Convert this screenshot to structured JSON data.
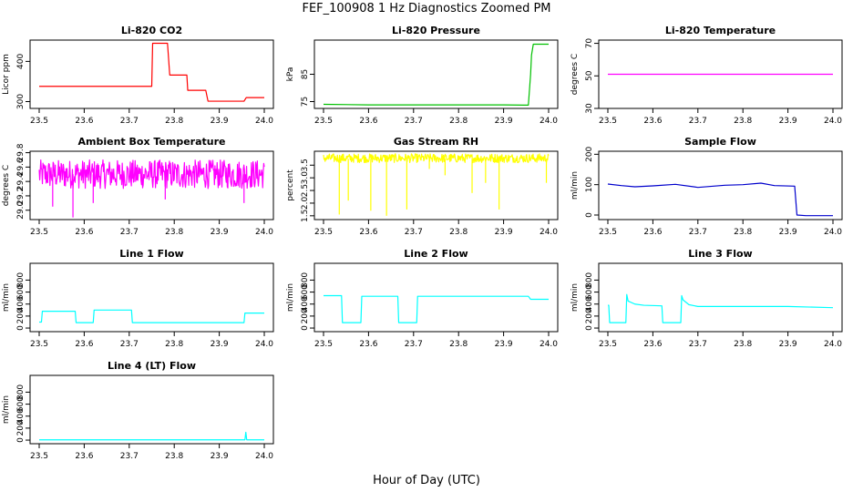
{
  "figure": {
    "title": "FEF_100908  1 Hz Diagnostics Zoomed PM",
    "xlabel": "Hour of Day (UTC)"
  },
  "chart_data": [
    {
      "type": "line",
      "title": "Li-820 CO2",
      "ylabel": "Licor ppm",
      "xlim": [
        23.5,
        24.0
      ],
      "ylim": [
        283,
        453
      ],
      "xticks": [
        "23.5",
        "23.6",
        "23.7",
        "23.8",
        "23.9",
        "24.0"
      ],
      "yticks": [
        300,
        400
      ],
      "color": "#ff0000",
      "series": [
        {
          "x": [
            23.5,
            23.6,
            23.68,
            23.75,
            23.752,
            23.785,
            23.79,
            23.828,
            23.83,
            23.87,
            23.875,
            23.955,
            23.96,
            24.0
          ],
          "y": [
            338,
            338,
            338,
            338,
            445,
            445,
            366,
            366,
            328,
            328,
            301,
            301,
            310,
            310
          ]
        }
      ]
    },
    {
      "type": "line",
      "title": "Li-820 Pressure",
      "ylabel": "kPa",
      "xlim": [
        23.5,
        24.0
      ],
      "ylim": [
        72.5,
        97.5
      ],
      "xticks": [
        "23.5",
        "23.6",
        "23.7",
        "23.8",
        "23.9",
        "24.0"
      ],
      "yticks": [
        75,
        85
      ],
      "color": "#00c000",
      "series": [
        {
          "x": [
            23.5,
            23.6,
            23.7,
            23.8,
            23.9,
            23.945,
            23.955,
            23.96,
            23.962,
            23.966,
            23.97,
            24.0
          ],
          "y": [
            74,
            73.8,
            73.8,
            73.8,
            73.8,
            73.7,
            73.7,
            85,
            92,
            96,
            96,
            96
          ]
        }
      ]
    },
    {
      "type": "line",
      "title": "Li-820 Temperature",
      "ylabel": "degrees C",
      "xlim": [
        23.5,
        24.0
      ],
      "ylim": [
        30,
        72
      ],
      "xticks": [
        "23.5",
        "23.6",
        "23.7",
        "23.8",
        "23.9",
        "24.0"
      ],
      "yticks": [
        30,
        50,
        70
      ],
      "color": "#ff00ff",
      "series": [
        {
          "x": [
            23.5,
            24.0
          ],
          "y": [
            51,
            51
          ]
        }
      ]
    },
    {
      "type": "line",
      "title": "Ambient Box Temperature",
      "ylabel": "degrees C",
      "xlim": [
        23.5,
        24.0
      ],
      "ylim": [
        28.87,
        29.82
      ],
      "xticks": [
        "23.5",
        "23.6",
        "23.7",
        "23.8",
        "23.9",
        "24.0"
      ],
      "yticks": [
        29.0,
        29.2,
        29.4,
        29.6,
        29.8
      ],
      "color": "#ff00ff",
      "series": [
        {
          "x": [
            23.5,
            24.0
          ],
          "y": [
            29.5,
            29.5
          ],
          "band": [
            29.3,
            29.7
          ],
          "spikes": [
            [
              23.575,
              28.9
            ],
            [
              23.53,
              29.05
            ],
            [
              23.62,
              29.1
            ],
            [
              23.78,
              29.15
            ],
            [
              23.955,
              29.1
            ]
          ]
        }
      ]
    },
    {
      "type": "line",
      "title": "Gas Stream RH",
      "ylabel": "percent",
      "xlim": [
        23.5,
        24.0
      ],
      "ylim": [
        1.35,
        4.05
      ],
      "xticks": [
        "23.5",
        "23.6",
        "23.7",
        "23.8",
        "23.9",
        "24.0"
      ],
      "yticks": [
        1.5,
        2.0,
        2.5,
        3.0,
        3.5
      ],
      "color": "#ffff00",
      "series": [
        {
          "x": [
            23.5,
            24.0
          ],
          "y": [
            3.75,
            3.75
          ],
          "band": [
            3.6,
            3.95
          ],
          "spikes": [
            [
              23.535,
              1.55
            ],
            [
              23.555,
              2.1
            ],
            [
              23.605,
              1.7
            ],
            [
              23.64,
              1.5
            ],
            [
              23.685,
              1.75
            ],
            [
              23.735,
              3.35
            ],
            [
              23.77,
              3.1
            ],
            [
              23.83,
              2.4
            ],
            [
              23.86,
              2.8
            ],
            [
              23.89,
              1.75
            ],
            [
              23.995,
              2.8
            ]
          ]
        }
      ]
    },
    {
      "type": "line",
      "title": "Sample Flow",
      "ylabel": "ml/min",
      "xlim": [
        23.5,
        24.0
      ],
      "ylim": [
        -15,
        210
      ],
      "xticks": [
        "23.5",
        "23.6",
        "23.7",
        "23.8",
        "23.9",
        "24.0"
      ],
      "yticks": [
        0,
        100,
        200
      ],
      "color": "#0000cc",
      "series": [
        {
          "x": [
            23.5,
            23.53,
            23.56,
            23.6,
            23.65,
            23.7,
            23.76,
            23.8,
            23.84,
            23.87,
            23.915,
            23.92,
            23.94,
            24.0
          ],
          "y": [
            102,
            97,
            93,
            96,
            101,
            91,
            98,
            100,
            105,
            97,
            95,
            0,
            -2,
            -2
          ]
        }
      ]
    },
    {
      "type": "line",
      "title": "Line 1 Flow",
      "ylabel": "ml/min",
      "xlim": [
        23.5,
        24.0
      ],
      "ylim": [
        -60,
        1080
      ],
      "xticks": [
        "23.5",
        "23.6",
        "23.7",
        "23.8",
        "23.9",
        "24.0"
      ],
      "yticks": [
        0,
        200,
        400,
        600,
        800
      ],
      "color": "#00ffff",
      "series": [
        {
          "x": [
            23.5,
            23.505,
            23.507,
            23.58,
            23.582,
            23.62,
            23.622,
            23.705,
            23.707,
            23.955,
            23.957,
            24.0
          ],
          "y": [
            100,
            100,
            280,
            280,
            90,
            90,
            300,
            300,
            90,
            90,
            250,
            250
          ]
        }
      ]
    },
    {
      "type": "line",
      "title": "Line 2 Flow",
      "ylabel": "ml/min",
      "xlim": [
        23.5,
        24.0
      ],
      "ylim": [
        -60,
        1080
      ],
      "xticks": [
        "23.5",
        "23.6",
        "23.7",
        "23.8",
        "23.9",
        "24.0"
      ],
      "yticks": [
        0,
        200,
        400,
        600,
        800
      ],
      "color": "#00ffff",
      "series": [
        {
          "x": [
            23.5,
            23.54,
            23.542,
            23.583,
            23.585,
            23.665,
            23.667,
            23.707,
            23.709,
            23.955,
            23.96,
            24.0
          ],
          "y": [
            540,
            540,
            90,
            90,
            530,
            530,
            90,
            90,
            530,
            530,
            480,
            480
          ]
        }
      ]
    },
    {
      "type": "line",
      "title": "Line 3 Flow",
      "ylabel": "ml/min",
      "xlim": [
        23.5,
        24.0
      ],
      "ylim": [
        -60,
        1080
      ],
      "xticks": [
        "23.5",
        "23.6",
        "23.7",
        "23.8",
        "23.9",
        "24.0"
      ],
      "yticks": [
        0,
        200,
        400,
        600,
        800
      ],
      "color": "#00ffff",
      "series": [
        {
          "x": [
            23.5,
            23.502,
            23.504,
            23.54,
            23.542,
            23.545,
            23.56,
            23.58,
            23.62,
            23.622,
            23.662,
            23.664,
            23.667,
            23.68,
            23.7,
            23.8,
            23.9,
            24.0
          ],
          "y": [
            380,
            380,
            90,
            90,
            560,
            450,
            400,
            380,
            370,
            90,
            90,
            540,
            470,
            390,
            360,
            360,
            360,
            340
          ]
        }
      ]
    },
    {
      "type": "line",
      "title": "Line 4 (LT) Flow",
      "ylabel": "ml/min",
      "xlim": [
        23.5,
        24.0
      ],
      "ylim": [
        -60,
        1080
      ],
      "xticks": [
        "23.5",
        "23.6",
        "23.7",
        "23.8",
        "23.9",
        "24.0"
      ],
      "yticks": [
        0,
        200,
        400,
        600,
        800
      ],
      "color": "#00ffff",
      "series": [
        {
          "x": [
            23.5,
            23.9,
            23.957,
            23.959,
            23.961,
            23.963,
            24.0
          ],
          "y": [
            5,
            5,
            5,
            130,
            5,
            5,
            5
          ]
        }
      ]
    }
  ]
}
